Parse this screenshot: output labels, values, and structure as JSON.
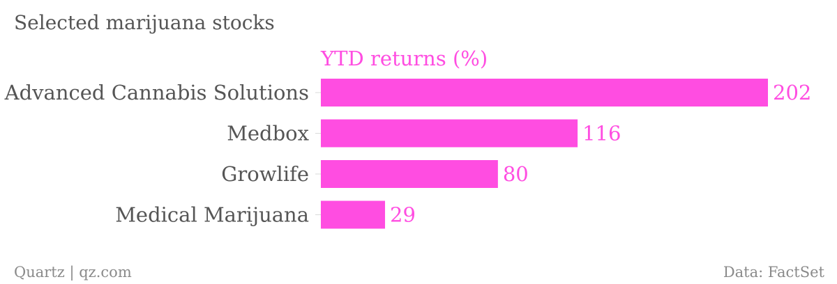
{
  "colors": {
    "bar": "#ff4de1",
    "value_label": "#ff4de1",
    "series_label": "#ff4de1",
    "title": "#555555",
    "category_label": "#555555",
    "footer": "#8a8a8a",
    "tick": "#d9d9d9",
    "background": "#ffffff"
  },
  "chart_data": {
    "type": "bar",
    "orientation": "horizontal",
    "title": "Selected marijuana stocks",
    "categories": [
      "Advanced Cannabis Solutions",
      "Medbox",
      "Growlife",
      "Medical Marijuana"
    ],
    "series": [
      {
        "name": "YTD returns (%)",
        "values": [
          202,
          116,
          80,
          29
        ]
      }
    ],
    "xlim": [
      0,
      202
    ],
    "grid": false,
    "data_labels": true
  },
  "footer": {
    "left": "Quartz | qz.com",
    "right": "Data: FactSet"
  }
}
